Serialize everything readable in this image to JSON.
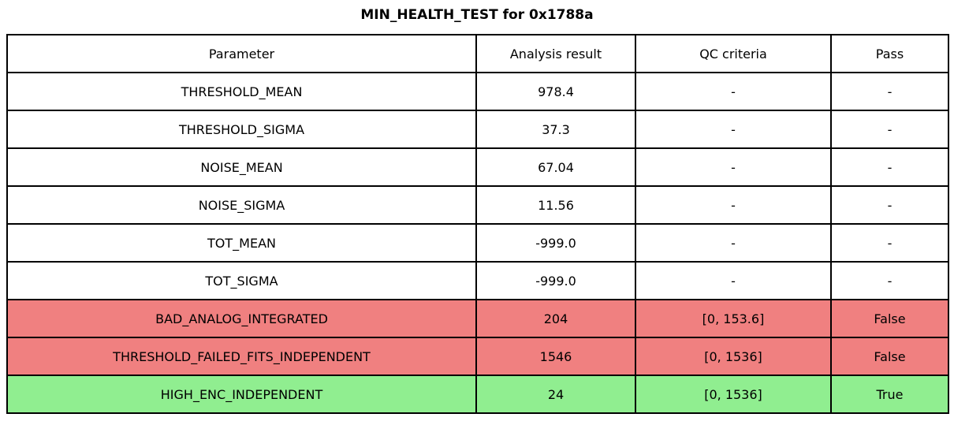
{
  "title": "MIN_HEALTH_TEST for 0x1788a",
  "colors": {
    "border": "#000000",
    "background": "#FFFFFF",
    "text": "#000000"
  },
  "chart_data": {
    "type": "table",
    "title": "MIN_HEALTH_TEST for 0x1788a",
    "columns": [
      "Parameter",
      "Analysis result",
      "QC criteria",
      "Pass"
    ],
    "row_colors": {
      "neutral": "#FFFFFF",
      "fail": "#F08080",
      "pass": "#90EE90"
    },
    "rows": [
      {
        "parameter": "THRESHOLD_MEAN",
        "analysis_result": "978.4",
        "qc_criteria": "-",
        "pass": "-",
        "status": "neutral"
      },
      {
        "parameter": "THRESHOLD_SIGMA",
        "analysis_result": "37.3",
        "qc_criteria": "-",
        "pass": "-",
        "status": "neutral"
      },
      {
        "parameter": "NOISE_MEAN",
        "analysis_result": "67.04",
        "qc_criteria": "-",
        "pass": "-",
        "status": "neutral"
      },
      {
        "parameter": "NOISE_SIGMA",
        "analysis_result": "11.56",
        "qc_criteria": "-",
        "pass": "-",
        "status": "neutral"
      },
      {
        "parameter": "TOT_MEAN",
        "analysis_result": "-999.0",
        "qc_criteria": "-",
        "pass": "-",
        "status": "neutral"
      },
      {
        "parameter": "TOT_SIGMA",
        "analysis_result": "-999.0",
        "qc_criteria": "-",
        "pass": "-",
        "status": "neutral"
      },
      {
        "parameter": "BAD_ANALOG_INTEGRATED",
        "analysis_result": "204",
        "qc_criteria": "[0, 153.6]",
        "pass": "False",
        "status": "fail"
      },
      {
        "parameter": "THRESHOLD_FAILED_FITS_INDEPENDENT",
        "analysis_result": "1546",
        "qc_criteria": "[0, 1536]",
        "pass": "False",
        "status": "fail"
      },
      {
        "parameter": "HIGH_ENC_INDEPENDENT",
        "analysis_result": "24",
        "qc_criteria": "[0, 1536]",
        "pass": "True",
        "status": "pass"
      }
    ]
  }
}
